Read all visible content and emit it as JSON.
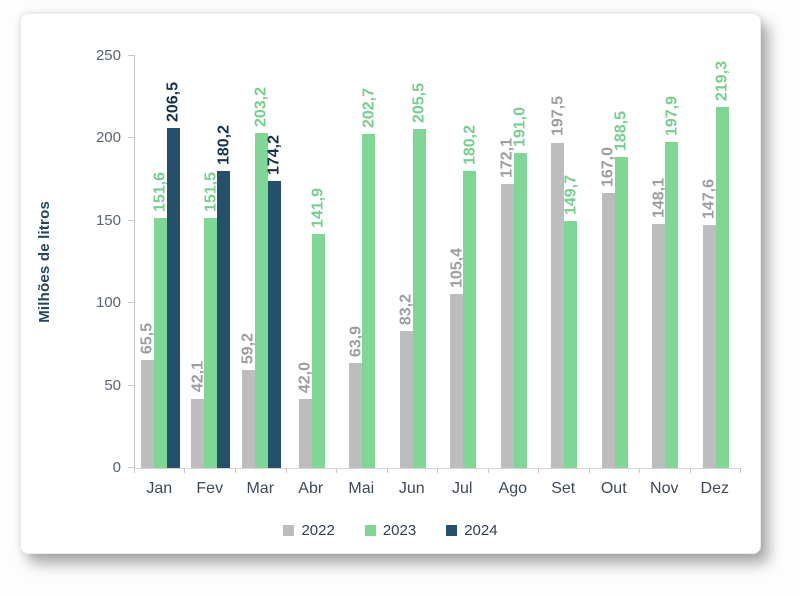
{
  "chart_data": {
    "type": "bar",
    "title": "",
    "xlabel": "",
    "ylabel": "Milhões de litros",
    "ylim": [
      0,
      250
    ],
    "yticks": [
      0,
      50,
      100,
      150,
      200,
      250
    ],
    "grid": false,
    "legend_position": "bottom",
    "value_label_rotation": "vertical",
    "decimal_separator": ",",
    "categories": [
      "Jan",
      "Fev",
      "Mar",
      "Abr",
      "Mai",
      "Jun",
      "Jul",
      "Ago",
      "Set",
      "Out",
      "Nov",
      "Dez"
    ],
    "series": [
      {
        "name": "2022",
        "color": "#bdbdbd",
        "label_color": "#9e9e9e",
        "values": [
          65.5,
          42.1,
          59.2,
          42.0,
          63.9,
          83.2,
          105.4,
          172.1,
          197.5,
          167.0,
          148.1,
          147.6
        ],
        "labels": [
          "65,5",
          "42,1",
          "59,2",
          "42,0",
          "63,9",
          "83,2",
          "105,4",
          "172,1",
          "197,5",
          "167,0",
          "148,1",
          "147,6"
        ]
      },
      {
        "name": "2023",
        "color": "#7ed794",
        "label_color": "#74d08c",
        "values": [
          151.6,
          151.5,
          203.2,
          141.9,
          202.7,
          205.5,
          180.2,
          191.0,
          149.7,
          188.5,
          197.9,
          219.3
        ],
        "labels": [
          "151,6",
          "151,5",
          "203,2",
          "141,9",
          "202,7",
          "205,5",
          "180,2",
          "191,0",
          "149,7",
          "188,5",
          "197,9",
          "219,3"
        ]
      },
      {
        "name": "2024",
        "color": "#24506b",
        "label_color": "#17344d",
        "values": [
          206.5,
          180.2,
          174.2,
          null,
          null,
          null,
          null,
          null,
          null,
          null,
          null,
          null
        ],
        "labels": [
          "206,5",
          "180,2",
          "174,2",
          "",
          "",
          "",
          "",
          "",
          "",
          "",
          "",
          ""
        ]
      }
    ]
  }
}
